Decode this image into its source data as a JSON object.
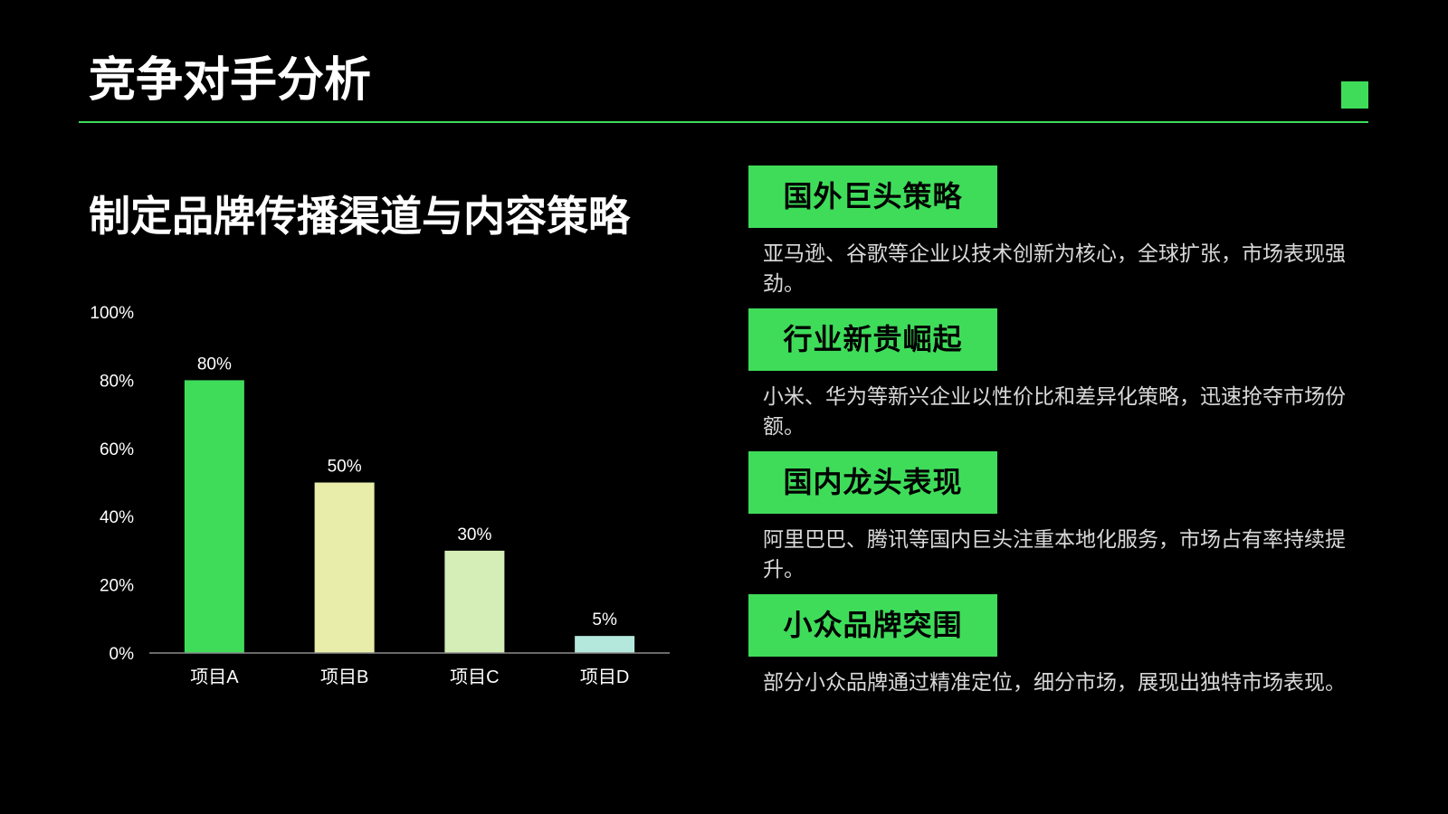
{
  "page": {
    "title": "竞争对手分析",
    "section_title": "制定品牌传播渠道与内容策略"
  },
  "colors": {
    "background": "#000000",
    "accent": "#3fdc5a",
    "text": "#ffffff",
    "muted_text": "#d9d9d9"
  },
  "chart_data": {
    "type": "bar",
    "title": "",
    "xlabel": "",
    "ylabel": "",
    "categories": [
      "项目A",
      "项目B",
      "项目C",
      "项目D"
    ],
    "values": [
      80,
      50,
      30,
      5
    ],
    "value_labels": [
      "80%",
      "50%",
      "30%",
      "5%"
    ],
    "bar_colors": [
      "#3fdc5a",
      "#e8eeaa",
      "#d5edb6",
      "#b4e8dd"
    ],
    "ylim": [
      0,
      100
    ],
    "yticks": [
      0,
      20,
      40,
      60,
      80,
      100
    ],
    "ytick_labels": [
      "0%",
      "20%",
      "40%",
      "60%",
      "80%",
      "100%"
    ],
    "grid": false,
    "legend": "none"
  },
  "cards": [
    {
      "label": "国外巨头策略",
      "description": "亚马逊、谷歌等企业以技术创新为核心，全球扩张，市场表现强劲。"
    },
    {
      "label": "行业新贵崛起",
      "description": "小米、华为等新兴企业以性价比和差异化策略，迅速抢夺市场份额。"
    },
    {
      "label": "国内龙头表现",
      "description": "阿里巴巴、腾讯等国内巨头注重本地化服务，市场占有率持续提升。"
    },
    {
      "label": "小众品牌突围",
      "description": "部分小众品牌通过精准定位，细分市场，展现出独特市场表现。"
    }
  ]
}
